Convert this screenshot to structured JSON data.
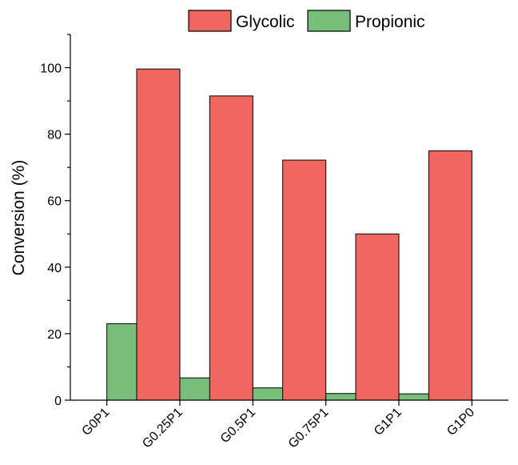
{
  "chart_data": {
    "type": "bar",
    "title": "",
    "xlabel": "",
    "ylabel": "Conversion (%)",
    "ylim": [
      0,
      110
    ],
    "yticks": [
      0,
      20,
      40,
      60,
      80,
      100
    ],
    "grid": false,
    "legend_position": "top",
    "categories": [
      "G0P1",
      "G0.25P1",
      "G0.5P1",
      "G0.75P1",
      "G1P1",
      "G1P0"
    ],
    "series": [
      {
        "name": "Glycolic",
        "color": "#f26661",
        "values": [
          0,
          99.6,
          91.5,
          72.2,
          50.0,
          75.0
        ]
      },
      {
        "name": "Propionic",
        "color": "#76be7a",
        "values": [
          23.0,
          6.7,
          3.7,
          2.0,
          1.9,
          0
        ]
      }
    ]
  }
}
